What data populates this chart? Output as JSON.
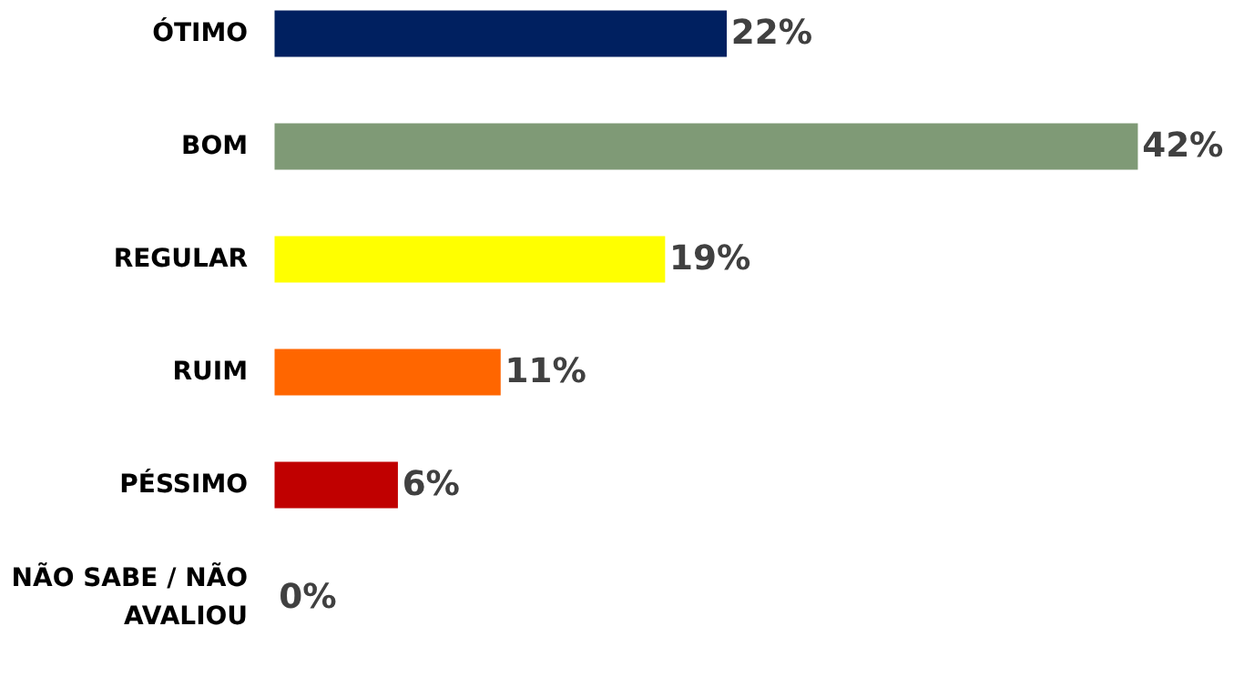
{
  "chart_data": {
    "type": "bar",
    "orientation": "horizontal",
    "categories": [
      "ÓTIMO",
      "BOM",
      "REGULAR",
      "RUIM",
      "PÉSSIMO",
      "NÃO SABE / NÃO AVALIOU"
    ],
    "values": [
      22,
      42,
      19,
      11,
      6,
      0
    ],
    "colors": [
      "#002060",
      "#7f9a76",
      "#ffff00",
      "#ff6600",
      "#c00000",
      "#c00000"
    ],
    "value_labels": [
      "22%",
      "42%",
      "19%",
      "11%",
      "6%",
      "0%"
    ],
    "grid": false
  }
}
